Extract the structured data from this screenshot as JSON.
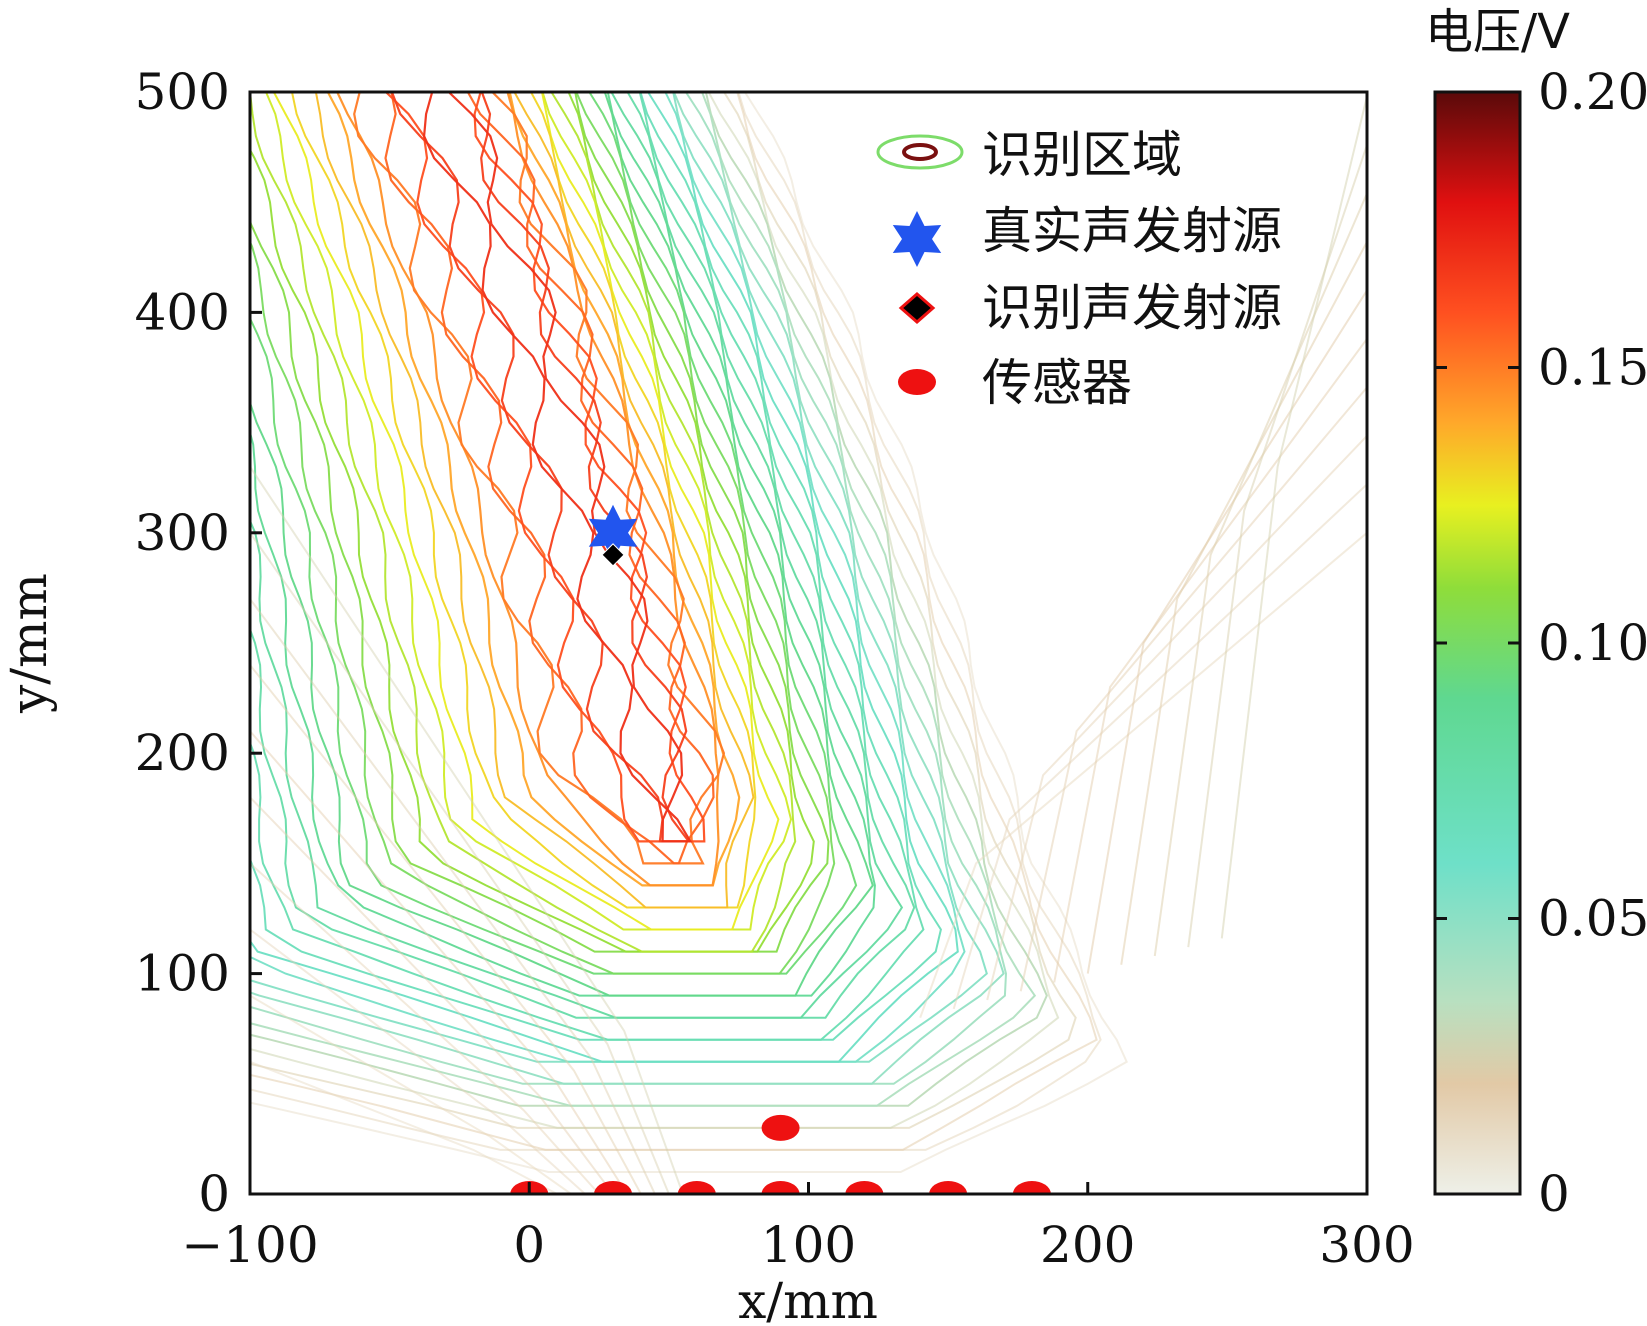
{
  "chart_data": {
    "type": "contour",
    "title": "",
    "xlabel": "x/mm",
    "ylabel": "y/mm",
    "xlim": [
      -100,
      300
    ],
    "ylim": [
      0,
      500
    ],
    "x_ticks": [
      -100,
      0,
      100,
      200,
      300
    ],
    "x_tick_labels": [
      "−100",
      "0",
      "100",
      "200",
      "300"
    ],
    "y_ticks": [
      0,
      100,
      200,
      300,
      400,
      500
    ],
    "y_tick_labels": [
      "0",
      "100",
      "200",
      "300",
      "400",
      "500"
    ],
    "colorbar": {
      "title": "电压/V",
      "range": [
        0,
        0.2
      ],
      "ticks": [
        0,
        0.05,
        0.1,
        0.15,
        0.2
      ],
      "tick_labels": [
        "0",
        "0.05",
        "0.10",
        "0.15",
        "0.20"
      ],
      "stops": [
        {
          "v": 0.0,
          "color": "#eef0e8"
        },
        {
          "v": 0.02,
          "color": "#e2c9a6"
        },
        {
          "v": 0.035,
          "color": "#b8e0c0"
        },
        {
          "v": 0.06,
          "color": "#6ee0c8"
        },
        {
          "v": 0.09,
          "color": "#5fd890"
        },
        {
          "v": 0.11,
          "color": "#8fdd3a"
        },
        {
          "v": 0.125,
          "color": "#e8f020"
        },
        {
          "v": 0.14,
          "color": "#ffa82a"
        },
        {
          "v": 0.16,
          "color": "#ff5020"
        },
        {
          "v": 0.18,
          "color": "#e01010"
        },
        {
          "v": 0.2,
          "color": "#5a0a0a"
        }
      ]
    },
    "legend": {
      "position": "top-right",
      "entries": [
        {
          "label": "识别区域",
          "marker": "contour"
        },
        {
          "label": "真实声发射源",
          "marker": "star",
          "color": "#2255ee"
        },
        {
          "label": "识别声发射源",
          "marker": "diamond",
          "color": "#000000",
          "edge": "#ee1111"
        },
        {
          "label": "传感器",
          "marker": "ellipse",
          "color": "#ee1111"
        }
      ]
    },
    "true_source": {
      "x": 30,
      "y": 300
    },
    "identified_source": {
      "x": 30,
      "y": 290
    },
    "sensors": [
      {
        "x": 0,
        "y": 0
      },
      {
        "x": 30,
        "y": 0
      },
      {
        "x": 60,
        "y": 0
      },
      {
        "x": 90,
        "y": 0
      },
      {
        "x": 120,
        "y": 0
      },
      {
        "x": 150,
        "y": 0
      },
      {
        "x": 180,
        "y": 0
      },
      {
        "x": 90,
        "y": 30
      }
    ],
    "ridge": {
      "description": "identified high-voltage band",
      "centerline": [
        [
          -30,
          500
        ],
        [
          0,
          400
        ],
        [
          25,
          300
        ],
        [
          45,
          200
        ],
        [
          55,
          150
        ],
        [
          70,
          100
        ],
        [
          90,
          40
        ],
        [
          95,
          0
        ]
      ],
      "peak_value": 0.17
    }
  }
}
